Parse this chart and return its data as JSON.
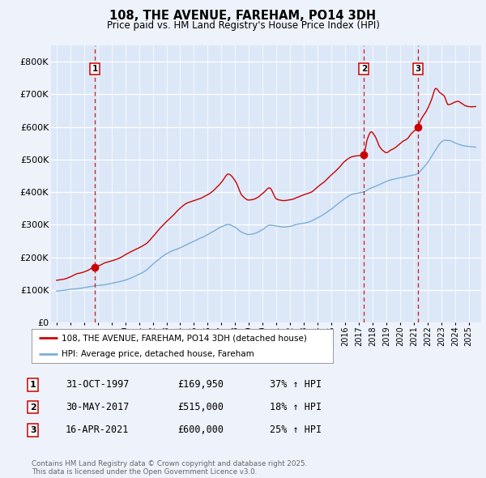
{
  "title": "108, THE AVENUE, FAREHAM, PO14 3DH",
  "subtitle": "Price paid vs. HM Land Registry's House Price Index (HPI)",
  "background_color": "#eef2fb",
  "plot_bg_color": "#dce8f8",
  "grid_color": "#ffffff",
  "red_line_color": "#cc0000",
  "blue_line_color": "#7aaed6",
  "sale_marker_color": "#cc0000",
  "dashed_vline_color": "#cc0000",
  "ylim": [
    0,
    850000
  ],
  "yticks": [
    0,
    100000,
    200000,
    300000,
    400000,
    500000,
    600000,
    700000,
    800000
  ],
  "ytick_labels": [
    "£0",
    "£100K",
    "£200K",
    "£300K",
    "£400K",
    "£500K",
    "£600K",
    "£700K",
    "£800K"
  ],
  "sale1_t": 1997.79,
  "sale1_price": 169950,
  "sale2_t": 2017.37,
  "sale2_price": 515000,
  "sale3_t": 2021.29,
  "sale3_price": 600000,
  "table_rows": [
    {
      "num": "1",
      "date": "31-OCT-1997",
      "price": "£169,950",
      "hpi": "37% ↑ HPI"
    },
    {
      "num": "2",
      "date": "30-MAY-2017",
      "price": "£515,000",
      "hpi": "18% ↑ HPI"
    },
    {
      "num": "3",
      "date": "16-APR-2021",
      "price": "£600,000",
      "hpi": "25% ↑ HPI"
    }
  ],
  "footer": "Contains HM Land Registry data © Crown copyright and database right 2025.\nThis data is licensed under the Open Government Licence v3.0.",
  "legend_red": "108, THE AVENUE, FAREHAM, PO14 3DH (detached house)",
  "legend_blue": "HPI: Average price, detached house, Fareham"
}
